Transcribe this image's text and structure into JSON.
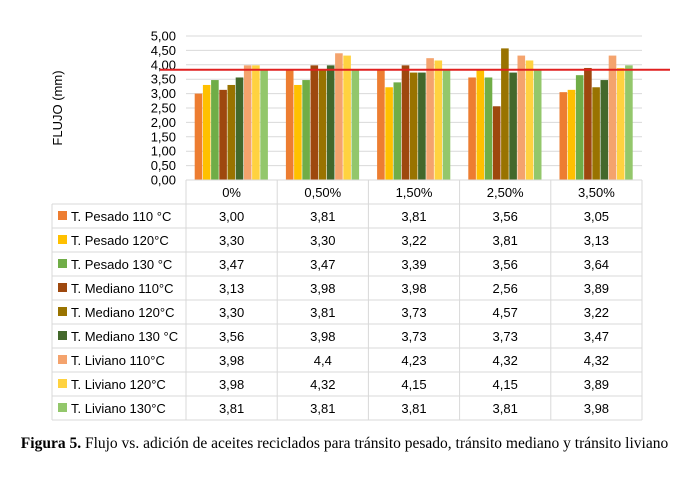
{
  "chart_data": {
    "type": "bar",
    "ylabel": "FLUJO (mm)",
    "ylim": [
      0,
      5
    ],
    "y_ticks": [
      "0,00",
      "0,50",
      "1,00",
      "1,50",
      "2,00",
      "2,50",
      "3,00",
      "3,50",
      "4,00",
      "4,50",
      "5,00"
    ],
    "grid": true,
    "categories": [
      "0%",
      "0,50%",
      "1,50%",
      "2,50%",
      "3,50%"
    ],
    "reference_line": {
      "value": 3.83,
      "color": "#e02020"
    },
    "series": [
      {
        "name": "T. Pesado 110 °C",
        "color": "#ed7d31",
        "values": [
          3.0,
          3.81,
          3.81,
          3.56,
          3.05
        ],
        "labels": [
          "3,00",
          "3,81",
          "3,81",
          "3,56",
          "3,05"
        ]
      },
      {
        "name": "T. Pesado 120°C",
        "color": "#ffc000",
        "values": [
          3.3,
          3.3,
          3.22,
          3.81,
          3.13
        ],
        "labels": [
          "3,30",
          "3,30",
          "3,22",
          "3,81",
          "3,13"
        ]
      },
      {
        "name": "T. Pesado 130 °C",
        "color": "#70ad47",
        "values": [
          3.47,
          3.47,
          3.39,
          3.56,
          3.64
        ],
        "labels": [
          "3,47",
          "3,47",
          "3,39",
          "3,56",
          "3,64"
        ]
      },
      {
        "name": "T. Mediano 110°C",
        "color": "#9e480e",
        "values": [
          3.13,
          3.98,
          3.98,
          2.56,
          3.89
        ],
        "labels": [
          "3,13",
          "3,98",
          "3,98",
          "2,56",
          "3,89"
        ]
      },
      {
        "name": "T. Mediano 120°C",
        "color": "#997300",
        "values": [
          3.3,
          3.81,
          3.73,
          4.57,
          3.22
        ],
        "labels": [
          "3,30",
          "3,81",
          "3,73",
          "4,57",
          "3,22"
        ]
      },
      {
        "name": "T. Mediano 130 °C",
        "color": "#43682b",
        "values": [
          3.56,
          3.98,
          3.73,
          3.73,
          3.47
        ],
        "labels": [
          "3,56",
          "3,98",
          "3,73",
          "3,73",
          "3,47"
        ]
      },
      {
        "name": "T. Liviano 110°C",
        "color": "#f4a36d",
        "values": [
          3.98,
          4.4,
          4.23,
          4.32,
          4.32
        ],
        "labels": [
          "3,98",
          "4,4",
          "4,23",
          "4,32",
          "4,32"
        ]
      },
      {
        "name": "T. Liviano 120°C",
        "color": "#ffd240",
        "values": [
          3.98,
          4.32,
          4.15,
          4.15,
          3.89
        ],
        "labels": [
          "3,98",
          "4,32",
          "4,15",
          "4,15",
          "3,89"
        ]
      },
      {
        "name": "T. Liviano 130°C",
        "color": "#93c76b",
        "values": [
          3.81,
          3.81,
          3.81,
          3.81,
          3.98
        ],
        "labels": [
          "3,81",
          "3,81",
          "3,81",
          "3,81",
          "3,98"
        ]
      }
    ]
  },
  "caption": {
    "label": "Figura 5.",
    "text": " Flujo vs. adición de aceites reciclados para tránsito pesado, tránsito mediano y tránsito liviano"
  }
}
